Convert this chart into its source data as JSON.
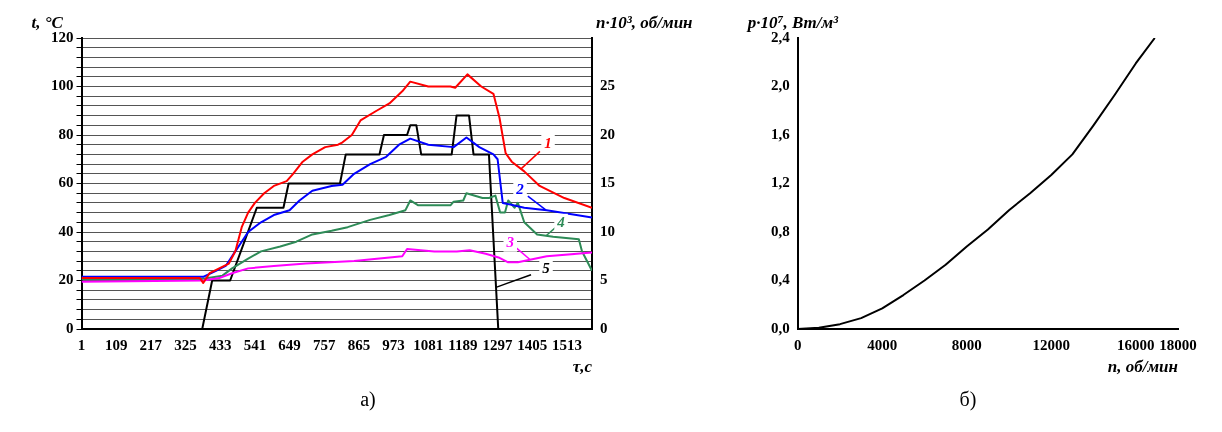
{
  "chart_data": [
    {
      "type": "line",
      "ylabel": "t, °C",
      "y2label": "n·10³, об/мин",
      "xlabel": "τ,с",
      "annotations": [
        "а)"
      ],
      "xlim": [
        1,
        1591
      ],
      "xticks": [
        1,
        109,
        217,
        325,
        433,
        541,
        649,
        757,
        865,
        973,
        1081,
        1189,
        1297,
        1405,
        1513
      ],
      "ylim": [
        0,
        120
      ],
      "yticks": [
        0,
        {
          "value": 4,
          "label": null
        },
        {
          "value": 8,
          "label": null
        },
        {
          "value": 12,
          "label": null
        },
        {
          "value": 16,
          "label": null
        },
        20,
        {
          "value": 24,
          "label": null
        },
        {
          "value": 28,
          "label": null
        },
        {
          "value": 32,
          "label": null
        },
        {
          "value": 36,
          "label": null
        },
        40,
        {
          "value": 44,
          "label": null
        },
        {
          "value": 48,
          "label": null
        },
        {
          "value": 52,
          "label": null
        },
        {
          "value": 56,
          "label": null
        },
        60,
        {
          "value": 64,
          "label": null
        },
        {
          "value": 68,
          "label": null
        },
        {
          "value": 72,
          "label": null
        },
        {
          "value": 76,
          "label": null
        },
        80,
        {
          "value": 84,
          "label": null
        },
        {
          "value": 88,
          "label": null
        },
        {
          "value": 92,
          "label": null
        },
        {
          "value": 96,
          "label": null
        },
        100,
        {
          "value": 104,
          "label": null
        },
        {
          "value": 108,
          "label": null
        },
        {
          "value": 112,
          "label": null
        },
        {
          "value": 116,
          "label": null
        },
        120
      ],
      "y2lim": [
        0,
        30
      ],
      "y2ticks": [
        0,
        5,
        10,
        15,
        20,
        25
      ],
      "grid": "y",
      "marker": "none",
      "line_style": "solid",
      "series": [
        {
          "name": "1",
          "color": "#ff0000",
          "x": [
            1,
            370,
            380,
            400,
            430,
            460,
            480,
            500,
            520,
            541,
            570,
            600,
            640,
            660,
            690,
            720,
            760,
            800,
            814,
            843,
            870,
            920,
            960,
            1000,
            1025,
            1081,
            1150,
            1165,
            1203,
            1246,
            1284,
            1303,
            1322,
            1341,
            1380,
            1428,
            1505,
            1591
          ],
          "values": [
            21,
            21,
            19,
            23,
            25,
            27,
            32,
            42,
            48,
            52,
            56,
            59,
            61,
            64,
            69,
            72,
            75,
            76,
            77,
            80,
            86,
            90,
            93,
            98,
            102,
            100,
            100,
            99.5,
            105,
            100,
            97,
            87,
            72.5,
            69,
            65,
            59,
            54,
            50
          ]
        },
        {
          "name": "2",
          "color": "#0000ff",
          "x": [
            1,
            380,
            420,
            450,
            480,
            500,
            520,
            560,
            600,
            649,
            680,
            720,
            780,
            814,
            850,
            900,
            950,
            990,
            1025,
            1081,
            1160,
            1200,
            1240,
            1284,
            1297,
            1313,
            1380,
            1450,
            1591
          ],
          "values": [
            21.5,
            21.5,
            24,
            26,
            32,
            36,
            40,
            44,
            47,
            49,
            53,
            57,
            59,
            59.5,
            64,
            68,
            71,
            76,
            78.5,
            76,
            75,
            79,
            75,
            72,
            70,
            52,
            50,
            49,
            46
          ]
        },
        {
          "name": "3",
          "color": "#ff00ff",
          "x": [
            1,
            380,
            430,
            470,
            520,
            600,
            700,
            850,
            1000,
            1015,
            1100,
            1170,
            1210,
            1260,
            1300,
            1330,
            1360,
            1450,
            1591
          ],
          "values": [
            19.5,
            20,
            21,
            23,
            25,
            26,
            27,
            28,
            30,
            33,
            32,
            32,
            32.5,
            31,
            29.5,
            27.5,
            27.5,
            30,
            31.5
          ]
        },
        {
          "name": "4",
          "color": "#2e8b57",
          "x": [
            1,
            370,
            440,
            470,
            520,
            560,
            620,
            670,
            720,
            780,
            830,
            900,
            960,
            1010,
            1025,
            1050,
            1100,
            1150,
            1160,
            1190,
            1200,
            1250,
            1270,
            1290,
            1305,
            1320,
            1330,
            1350,
            1360,
            1380,
            1420,
            1470,
            1550,
            1560,
            1591
          ],
          "values": [
            20.5,
            20.5,
            22,
            25,
            29,
            32,
            34,
            36,
            39,
            40.5,
            42,
            45,
            47,
            49,
            53,
            51,
            51,
            51,
            52.5,
            53,
            56,
            54,
            54,
            55,
            48,
            48,
            53,
            50,
            52,
            44,
            39,
            38,
            37,
            32,
            24
          ]
        },
        {
          "name": "5",
          "color": "#000000",
          "axis": "y2",
          "x": [
            369,
            377,
            408,
            464,
            547,
            630,
            646,
            806,
            824,
            929,
            943,
            1015,
            1025,
            1044,
            1059,
            1154,
            1169,
            1208,
            1222,
            1270,
            1299
          ],
          "values": [
            0,
            0,
            5,
            5,
            12.5,
            12.5,
            15,
            15,
            18,
            18,
            20,
            20,
            21,
            21,
            18,
            18,
            22,
            22,
            18,
            18,
            0
          ]
        }
      ]
    },
    {
      "type": "line",
      "ylabel": "p·10⁷, Вт/м³",
      "xlabel": "n, об/мин",
      "annotations": [
        "б)"
      ],
      "xlim": [
        0,
        18000
      ],
      "xticks": [
        0,
        4000,
        8000,
        12000,
        16000,
        18000
      ],
      "ylim": [
        0,
        2.4
      ],
      "yticks": [
        {
          "value": 0,
          "label": "0,0"
        },
        {
          "value": 0.4,
          "label": "0,4"
        },
        {
          "value": 0.8,
          "label": "0,8"
        },
        {
          "value": 1.2,
          "label": "1,2"
        },
        {
          "value": 1.6,
          "label": "1,6"
        },
        {
          "value": 2,
          "label": "2,0"
        },
        {
          "value": 2.4,
          "label": "2,4"
        }
      ],
      "grid": false,
      "marker": "none",
      "line_style": "solid",
      "series": [
        {
          "color": "#000000",
          "x": [
            0,
            1000,
            2000,
            3000,
            4000,
            5000,
            6000,
            7000,
            8000,
            9000,
            10000,
            11000,
            12000,
            13000,
            14000,
            15000,
            16000,
            16900
          ],
          "values": [
            0,
            0.01,
            0.04,
            0.09,
            0.17,
            0.28,
            0.4,
            0.53,
            0.68,
            0.82,
            0.98,
            1.12,
            1.27,
            1.44,
            1.68,
            1.93,
            2.19,
            2.4
          ]
        }
      ]
    }
  ]
}
